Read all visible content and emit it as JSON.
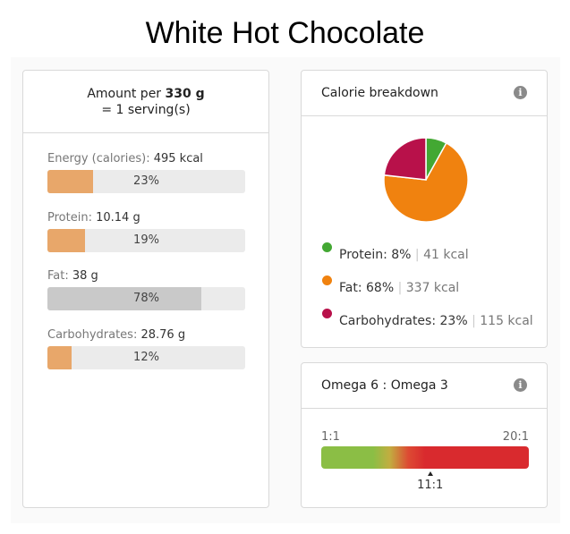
{
  "title": "White Hot Chocolate",
  "amount": {
    "prefix": "Amount per ",
    "weight": "330 g",
    "serving": "= 1 serving(s)"
  },
  "nutrients": [
    {
      "label": "Energy (calories): ",
      "value": "495 kcal",
      "percent": "23%",
      "fraction": 0.23,
      "color": "#e8a76a"
    },
    {
      "label": "Protein: ",
      "value": "10.14 g",
      "percent": "19%",
      "fraction": 0.19,
      "color": "#e8a76a"
    },
    {
      "label": "Fat: ",
      "value": "38 g",
      "percent": "78%",
      "fraction": 0.78,
      "color": "#c9c9c9"
    },
    {
      "label": "Carbohydrates: ",
      "value": "28.76 g",
      "percent": "12%",
      "fraction": 0.12,
      "color": "#e8a76a"
    }
  ],
  "calorie_breakdown": {
    "title": "Calorie breakdown",
    "info_icon": "info-icon",
    "items": [
      {
        "label": "Protein: 8%",
        "kcal": "41 kcal",
        "color": "#43a833"
      },
      {
        "label": "Fat: 68%",
        "kcal": "337 kcal",
        "color": "#f0820f"
      },
      {
        "label": "Carbohydrates: 23%",
        "kcal": "115 kcal",
        "color": "#b8114a"
      }
    ]
  },
  "chart_data": {
    "type": "pie",
    "categories": [
      "Protein",
      "Fat",
      "Carbohydrates"
    ],
    "values": [
      8,
      68,
      23
    ],
    "colors": [
      "#43a833",
      "#f0820f",
      "#b8114a"
    ]
  },
  "omega": {
    "title": "Omega 6 : Omega 3",
    "info_icon": "info-icon",
    "min_label": "1:1",
    "max_label": "20:1",
    "ratio": "11:1",
    "ratio_value": 11,
    "scale_min": 1,
    "scale_max": 20
  }
}
